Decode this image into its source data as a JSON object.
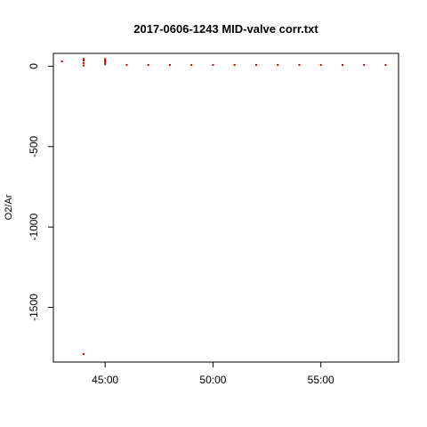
{
  "chart_data": {
    "type": "scatter",
    "title": "2017-0606-1243 MID-valve corr.txt",
    "xlabel": "",
    "ylabel": "O2/Ar",
    "x_unit": "minutes",
    "xlim": [
      42.6,
      58.6
    ],
    "ylim": [
      -1840,
      80
    ],
    "x_ticks": [
      45,
      50,
      55
    ],
    "x_tick_labels": [
      "45:00",
      "50:00",
      "55:00"
    ],
    "y_ticks": [
      0,
      -500,
      -1000,
      -1500
    ],
    "y_tick_labels": [
      "0",
      "-500",
      "-1000",
      "-1500"
    ],
    "grid": false,
    "legend": "none",
    "point_color": "#cc0000",
    "series": [
      {
        "x": [
          43,
          44,
          44,
          44,
          44,
          44,
          45,
          45,
          45,
          45,
          45,
          46,
          47,
          48,
          49,
          50,
          51,
          52,
          53,
          54,
          55,
          56,
          57,
          58
        ],
        "y": [
          30,
          45,
          35,
          20,
          5,
          -1790,
          45,
          38,
          30,
          22,
          12,
          8,
          8,
          8,
          8,
          8,
          8,
          8,
          8,
          8,
          8,
          8,
          8,
          8
        ]
      }
    ]
  }
}
